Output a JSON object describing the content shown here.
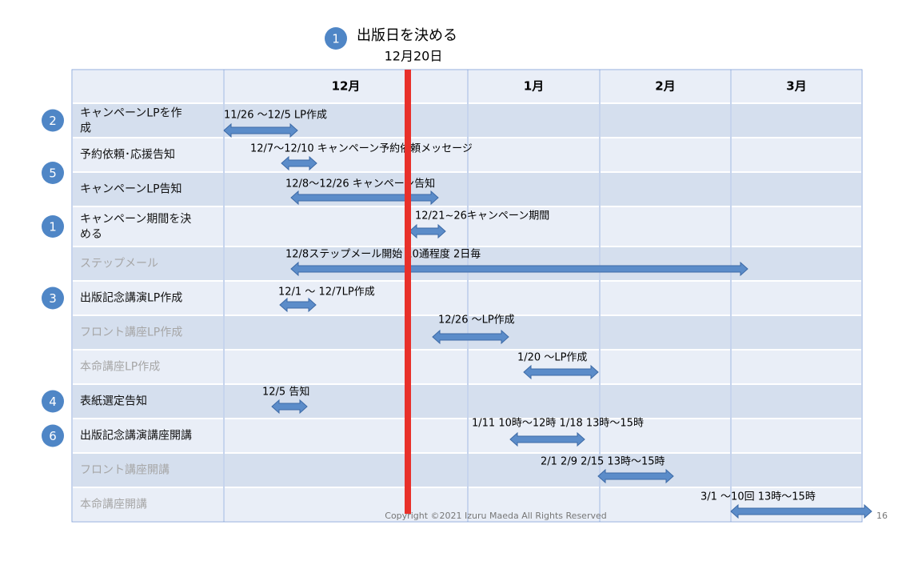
{
  "header": {
    "badge": "1",
    "title": "出版日を決める",
    "date": "12月20日"
  },
  "table": {
    "columns": [
      "12月",
      "1月",
      "2月",
      "3月"
    ],
    "rows": [
      {
        "badge": "2",
        "label": "キャンペーンLPを作成",
        "note": "11/26 〜12/5  LP作成"
      },
      {
        "label": "予約依頼･応援告知",
        "note": "12/7〜12/10 キャンペーン予約依頼メッセージ"
      },
      {
        "label": "キャンペーンLP告知",
        "note": "12/8〜12/26 キャンペーン告知"
      },
      {
        "badge": "1",
        "label": "キャンペーン期間を決める",
        "note": "12/21~26キャンペーン期間"
      },
      {
        "label": "ステップメール",
        "muted": true,
        "note": "12/8ステップメール開始  10通程度  2日毎"
      },
      {
        "badge": "3",
        "label": "出版記念講演LP作成",
        "note": "12/1 〜 12/7LP作成"
      },
      {
        "label": "フロント講座LP作成",
        "muted": true,
        "note": "12/26 〜LP作成"
      },
      {
        "label": "本命講座LP作成",
        "muted": true,
        "note": "1/20 〜LP作成"
      },
      {
        "badge": "4",
        "label": "表紙選定告知",
        "note": "12/5 告知"
      },
      {
        "badge": "6",
        "label": "出版記念講演講座開講",
        "note": "1/11  10時〜12時 1/18  13時〜15時"
      },
      {
        "label": "フロント講座開講",
        "muted": true,
        "note": "2/1 2/9 2/15  13時〜15時"
      },
      {
        "label": "本命講座開講",
        "muted": true,
        "note": "3/1 〜10回  13時〜15時"
      }
    ],
    "side_badge": "5"
  },
  "footer": {
    "copyright": "Copyright ©2021 Izuru Maeda All Rights Reserved",
    "page": "16"
  }
}
